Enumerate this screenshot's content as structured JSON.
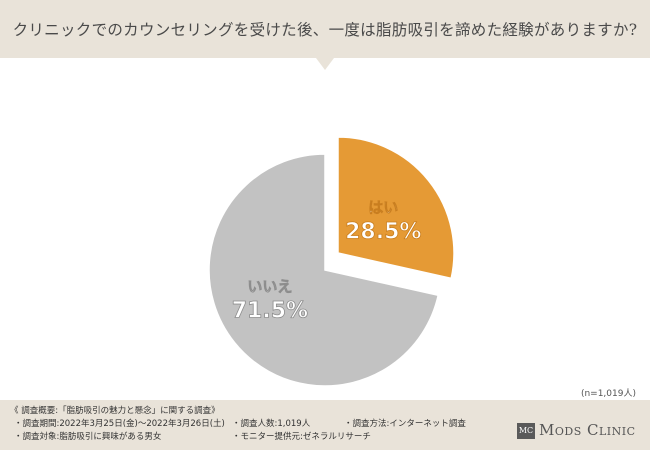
{
  "question": "クリニックでのカウンセリングを受けた後、一度は脂肪吸引を諦めた経験がありますか?",
  "chart_data": {
    "type": "pie",
    "slices": [
      {
        "label": "はい",
        "value": 28.5,
        "value_label": "28.5%",
        "color": "#e59a35"
      },
      {
        "label": "いいえ",
        "value": 71.5,
        "value_label": "71.5%",
        "color": "#c2c2c2"
      }
    ],
    "highlighted_slice": "はい"
  },
  "sample_size": "(n=1,019人)",
  "footer": {
    "title": "《 調査概要:「脂肪吸引の魅力と懸念」に関する調査》",
    "period": "・調査期間:2022年3月25日(金)〜2022年3月26日(土)",
    "people": "・調査人数:1,019人",
    "method": "・調査方法:インターネット調査",
    "target": "・調査対象:脂肪吸引に興味がある男女",
    "provider": "・モニター提供元:ゼネラルリサーチ"
  },
  "logo": {
    "mark": "MC",
    "text": "Mods Clinic"
  }
}
